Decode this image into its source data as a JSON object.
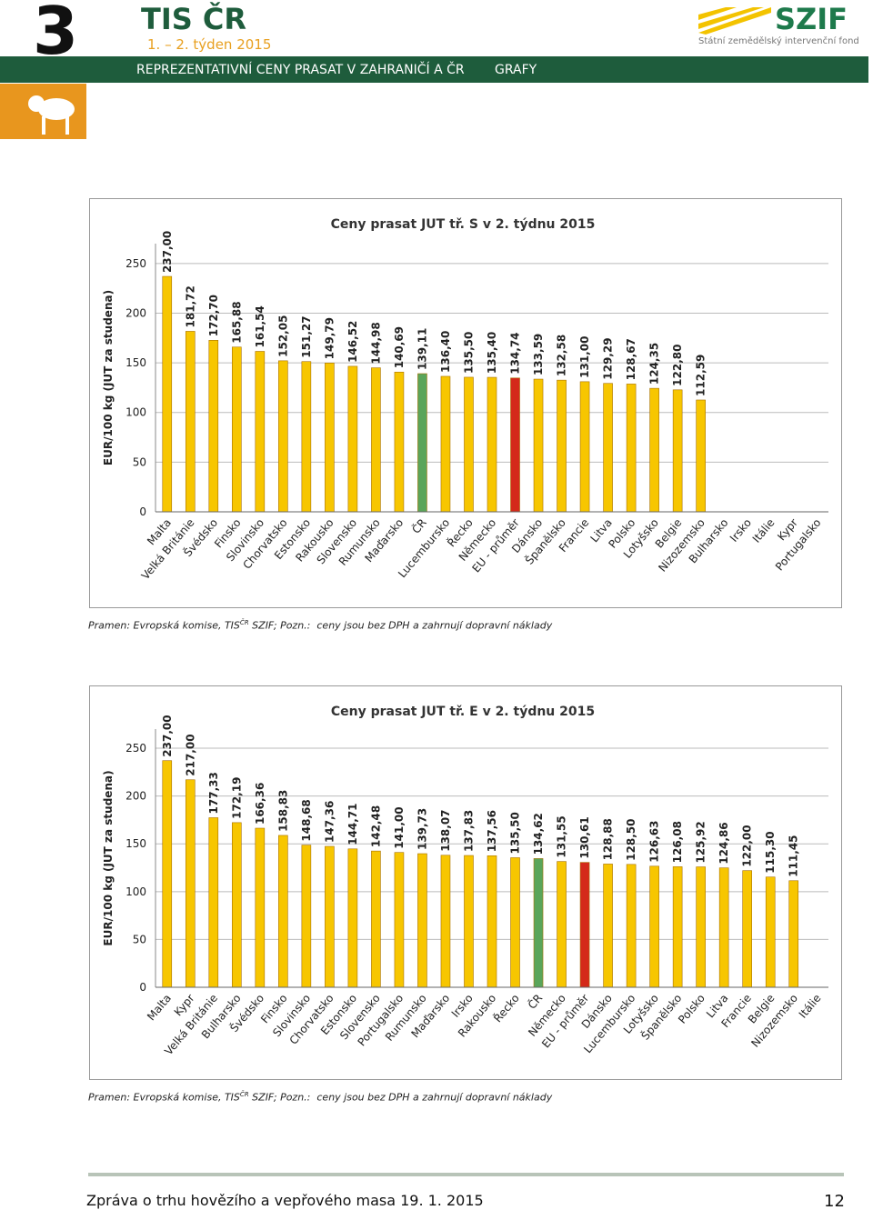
{
  "header": {
    "number": "3",
    "title": "TIS ČR",
    "week": "1. – 2. týden 2015",
    "section": "REPREZENTATIVNÍ CENY PRASAT V ZAHRANIČÍ A ČR",
    "section_tag": "GRAFY",
    "logo": "SZIF",
    "logo_subtitle": "Státní zemědělský intervenční fond"
  },
  "chart_data": [
    {
      "type": "bar",
      "title": "Ceny prasat JUT tř. S v 2. týdnu 2015",
      "ylabel": "EUR/100 kg (JUT za studena)",
      "categories": [
        "Malta",
        "Velká Británie",
        "Švédsko",
        "Finsko",
        "Slovinsko",
        "Chorvatsko",
        "Estonsko",
        "Rakousko",
        "Slovensko",
        "Rumunsko",
        "Maďarsko",
        "ČR",
        "Lucembursko",
        "Řecko",
        "Německo",
        "EU - průměr",
        "Dánsko",
        "Španělsko",
        "Francie",
        "Litva",
        "Polsko",
        "Lotyšsko",
        "Belgie",
        "Nizozemsko",
        "Bulharsko",
        "Irsko",
        "Itálie",
        "Kypr",
        "Portugalsko"
      ],
      "values": [
        237.0,
        181.72,
        172.7,
        165.88,
        161.54,
        152.05,
        151.27,
        149.79,
        146.52,
        144.98,
        140.69,
        139.11,
        136.4,
        135.5,
        135.4,
        134.74,
        133.59,
        132.58,
        131.0,
        129.29,
        128.67,
        124.35,
        122.8,
        112.59,
        null,
        null,
        null,
        null,
        null
      ],
      "value_labels": [
        "237,00",
        "181,72",
        "172,70",
        "165,88",
        "161,54",
        "152,05",
        "151,27",
        "149,79",
        "146,52",
        "144,98",
        "140,69",
        "139,11",
        "136,40",
        "135,50",
        "135,40",
        "134,74",
        "133,59",
        "132,58",
        "131,00",
        "129,29",
        "128,67",
        "124,35",
        "122,80",
        "112,59",
        null,
        null,
        null,
        null,
        null
      ],
      "color": "#f7c600",
      "colors": {
        "11": "#5aa55a",
        "15": "#d42a1a"
      },
      "ylim": [
        0,
        270
      ],
      "yticks": [
        0,
        50,
        100,
        150,
        200,
        250
      ],
      "grid": true
    },
    {
      "type": "bar",
      "title": "Ceny prasat JUT tř. E v 2. týdnu 2015",
      "ylabel": "EUR/100 kg (JUT za studena)",
      "categories": [
        "Malta",
        "Kypr",
        "Velká Británie",
        "Bulharsko",
        "Švédsko",
        "Finsko",
        "Slovinsko",
        "Chorvatsko",
        "Estonsko",
        "Slovensko",
        "Portugalsko",
        "Rumunsko",
        "Maďarsko",
        "Irsko",
        "Rakousko",
        "Řecko",
        "ČR",
        "Německo",
        "EU - průměr",
        "Dánsko",
        "Lucembursko",
        "Lotyšsko",
        "Španělsko",
        "Polsko",
        "Litva",
        "Francie",
        "Belgie",
        "Nizozemsko",
        "Itálie"
      ],
      "values": [
        237.0,
        217.0,
        177.33,
        172.19,
        166.36,
        158.83,
        148.68,
        147.36,
        144.71,
        142.48,
        141.0,
        139.73,
        138.07,
        137.83,
        137.56,
        135.5,
        134.62,
        131.55,
        130.61,
        128.88,
        128.5,
        126.63,
        126.08,
        125.92,
        124.86,
        122.0,
        115.3,
        111.45,
        null
      ],
      "value_labels": [
        "237,00",
        "217,00",
        "177,33",
        "172,19",
        "166,36",
        "158,83",
        "148,68",
        "147,36",
        "144,71",
        "142,48",
        "141,00",
        "139,73",
        "138,07",
        "137,83",
        "137,56",
        "135,50",
        "134,62",
        "131,55",
        "130,61",
        "128,88",
        "128,50",
        "126,63",
        "126,08",
        "125,92",
        "124,86",
        "122,00",
        "115,30",
        "111,45",
        null
      ],
      "color": "#f7c600",
      "colors": {
        "16": "#5aa55a",
        "18": "#d42a1a"
      },
      "ylim": [
        0,
        270
      ],
      "yticks": [
        0,
        50,
        100,
        150,
        200,
        250
      ],
      "grid": true
    }
  ],
  "notes": [
    {
      "source": "Pramen: Evropská komise, TIS",
      "superscript": "ČR",
      "text": "SZIF; Pozn.:  ceny jsou bez DPH a zahrnují dopravní náklady"
    },
    {
      "source": "Pramen: Evropská komise, TIS",
      "superscript": "ČR",
      "text": "SZIF; Pozn.:  ceny jsou bez DPH a zahrnují dopravní náklady"
    }
  ],
  "footer": {
    "text": "Zpráva o trhu hovězího a vepřového masa 19. 1. 2015",
    "page": "12"
  }
}
